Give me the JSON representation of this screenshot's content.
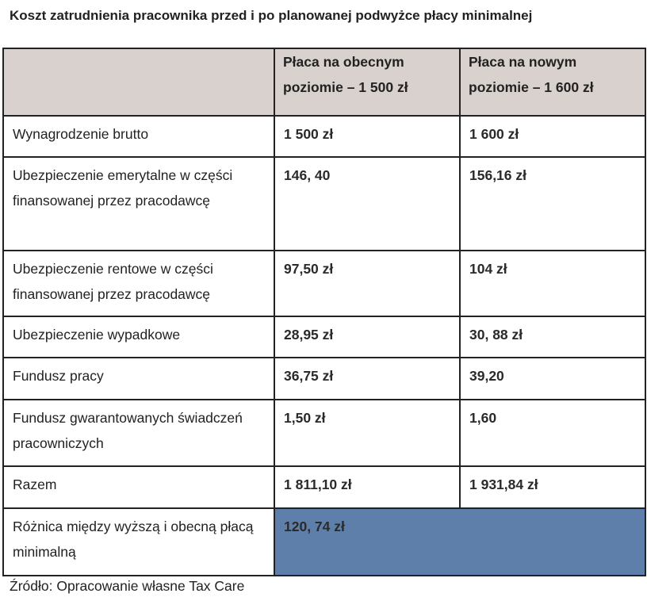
{
  "title": "Koszt zatrudnienia pracownika przed i po planowanej podwyżce płacy minimalnej",
  "table": {
    "headers": [
      "",
      "Płaca na obecnym poziomie – 1 500 zł",
      "Płaca na nowym poziomie – 1 600 zł"
    ],
    "rows": [
      {
        "label": "Wynagrodzenie brutto",
        "current": "1 500 zł",
        "new": "1 600 zł"
      },
      {
        "label": "Ubezpieczenie emerytalne w części finansowanej przez pracodawcę",
        "current": "146, 40",
        "new": "156,16 zł"
      },
      {
        "label": "Ubezpieczenie rentowe  w części finansowanej przez pracodawcę",
        "current": "97,50 zł",
        "new": "104 zł"
      },
      {
        "label": "Ubezpieczenie wypadkowe",
        "current": "28,95 zł",
        "new": "30, 88 zł"
      },
      {
        "label": "Fundusz pracy",
        "current": "36,75 zł",
        "new": "39,20"
      },
      {
        "label": "Fundusz gwarantowanych świadczeń pracowniczych",
        "current": "1,50 zł",
        "new": "1,60"
      },
      {
        "label": "Razem",
        "current": "1 811,10 zł",
        "new": "1 931,84 zł"
      }
    ],
    "difference": {
      "label": "Różnica między wyższą i obecną płacą minimalną",
      "value": "120, 74 zł"
    }
  },
  "source": "Źródło: Opracowanie własne Tax Care",
  "colors": {
    "header_bg": "#d9d1cd",
    "difference_bg": "#5f7fab"
  }
}
